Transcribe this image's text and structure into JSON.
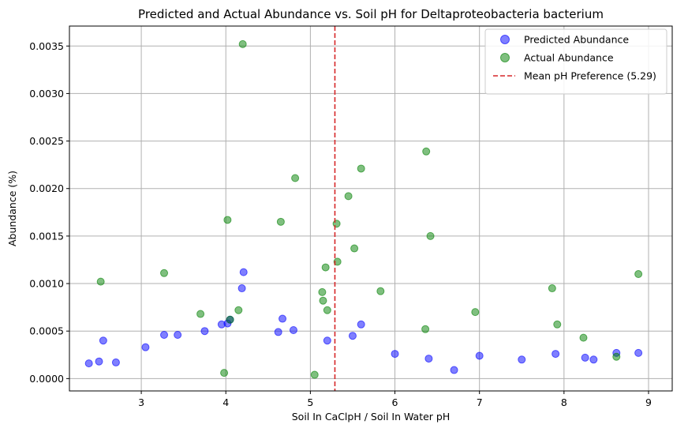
{
  "chart_data": {
    "type": "scatter",
    "title": "Predicted and Actual Abundance vs. Soil pH for Deltaproteobacteria bacterium",
    "xlabel": "Soil In CaClpH / Soil In Water pH",
    "ylabel": "Abundance (%)",
    "xlim": [
      2.15,
      9.28
    ],
    "ylim": [
      -0.00013,
      0.00371
    ],
    "xticks": [
      "3",
      "4",
      "5",
      "6",
      "7",
      "8",
      "9"
    ],
    "xtick_values": [
      3,
      4,
      5,
      6,
      7,
      8,
      9
    ],
    "yticks": [
      "0.0000",
      "0.0005",
      "0.0010",
      "0.0015",
      "0.0020",
      "0.0025",
      "0.0030",
      "0.0035"
    ],
    "ytick_values": [
      0,
      0.0005,
      0.001,
      0.0015,
      0.002,
      0.0025,
      0.003,
      0.0035
    ],
    "grid": true,
    "legend_position": "top-right",
    "mean_line": {
      "x": 5.29,
      "label": "Mean pH Preference (5.29)",
      "color": "#d62728",
      "style": "dashed"
    },
    "series": [
      {
        "name": "Predicted Abundance",
        "color": "#0000ff",
        "alpha": 0.5,
        "points": [
          [
            2.38,
            0.00016
          ],
          [
            2.5,
            0.00018
          ],
          [
            2.55,
            0.0004
          ],
          [
            2.7,
            0.00017
          ],
          [
            3.05,
            0.00033
          ],
          [
            3.27,
            0.00046
          ],
          [
            3.43,
            0.00046
          ],
          [
            3.75,
            0.0005
          ],
          [
            3.95,
            0.00057
          ],
          [
            4.02,
            0.00058
          ],
          [
            4.05,
            0.00062
          ],
          [
            4.19,
            0.00095
          ],
          [
            4.21,
            0.00112
          ],
          [
            4.62,
            0.00049
          ],
          [
            4.67,
            0.00063
          ],
          [
            4.8,
            0.00051
          ],
          [
            5.2,
            0.0004
          ],
          [
            5.5,
            0.00045
          ],
          [
            5.6,
            0.00057
          ],
          [
            6.0,
            0.00026
          ],
          [
            6.4,
            0.00021
          ],
          [
            6.7,
            9e-05
          ],
          [
            7.0,
            0.00024
          ],
          [
            7.5,
            0.0002
          ],
          [
            7.9,
            0.00026
          ],
          [
            8.25,
            0.00022
          ],
          [
            8.35,
            0.0002
          ],
          [
            8.62,
            0.00027
          ],
          [
            8.88,
            0.00027
          ]
        ]
      },
      {
        "name": "Actual Abundance",
        "color": "#008000",
        "alpha": 0.5,
        "points": [
          [
            2.52,
            0.00102
          ],
          [
            3.27,
            0.00111
          ],
          [
            3.7,
            0.00068
          ],
          [
            3.98,
            6e-05
          ],
          [
            4.02,
            0.00167
          ],
          [
            4.05,
            0.00062
          ],
          [
            4.15,
            0.00072
          ],
          [
            4.2,
            0.00352
          ],
          [
            4.65,
            0.00165
          ],
          [
            4.82,
            0.00211
          ],
          [
            5.05,
            4e-05
          ],
          [
            5.14,
            0.00091
          ],
          [
            5.15,
            0.00082
          ],
          [
            5.18,
            0.00117
          ],
          [
            5.2,
            0.00072
          ],
          [
            5.31,
            0.00163
          ],
          [
            5.32,
            0.00123
          ],
          [
            5.45,
            0.00192
          ],
          [
            5.52,
            0.00137
          ],
          [
            5.6,
            0.00221
          ],
          [
            5.83,
            0.00092
          ],
          [
            6.37,
            0.00239
          ],
          [
            6.42,
            0.0015
          ],
          [
            6.36,
            0.00052
          ],
          [
            6.95,
            0.0007
          ],
          [
            7.86,
            0.00095
          ],
          [
            7.92,
            0.00057
          ],
          [
            8.23,
            0.00043
          ],
          [
            8.62,
            0.00023
          ],
          [
            8.88,
            0.0011
          ]
        ]
      }
    ]
  }
}
